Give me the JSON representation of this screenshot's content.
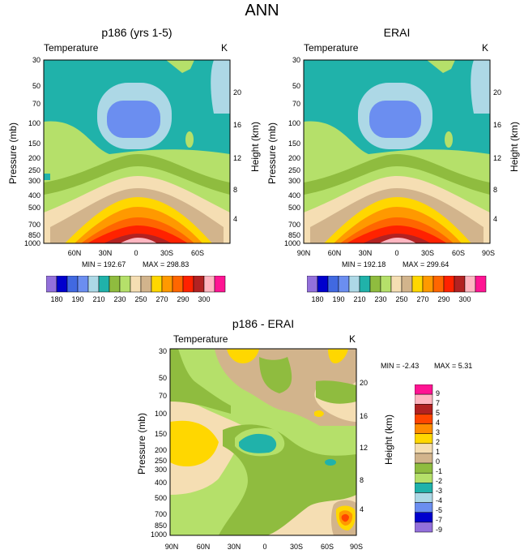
{
  "figure": {
    "title": "ANN",
    "variable_label": "Temperature",
    "units": "K",
    "ylabel_left": "Pressure (mb)",
    "ylabel_right": "Height (km)"
  },
  "panels": {
    "model": {
      "title": "p186 (yrs 1-5)",
      "min_label": "MIN = 192.67",
      "max_label": "MAX = 298.83"
    },
    "obs": {
      "title": "ERAI",
      "min_label": "MIN = 192.18",
      "max_label": "MAX = 299.64"
    },
    "diff": {
      "title": "p186 - ERAI",
      "min_label": "MIN =  -2.43",
      "max_label": "MAX =   5.31"
    }
  },
  "chart_data": [
    {
      "type": "contour",
      "name": "p186 (yrs 1-5)",
      "x_ticks": [
        "60N",
        "30N",
        "0",
        "30S",
        "60S"
      ],
      "pressure_levels": [
        "30",
        "50",
        "70",
        "100",
        "150",
        "200",
        "250",
        "300",
        "400",
        "500",
        "700",
        "850",
        "1000"
      ],
      "height_km_ticks": [
        "20",
        "16",
        "12",
        "8",
        "4"
      ],
      "min": 192.67,
      "max": 298.83
    },
    {
      "type": "contour",
      "name": "ERAI",
      "x_ticks": [
        "90N",
        "60N",
        "30N",
        "0",
        "30S",
        "60S",
        "90S"
      ],
      "pressure_levels": [
        "30",
        "50",
        "70",
        "100",
        "150",
        "200",
        "250",
        "300",
        "400",
        "500",
        "700",
        "850",
        "1000"
      ],
      "height_km_ticks": [
        "20",
        "16",
        "12",
        "8",
        "4"
      ],
      "min": 192.18,
      "max": 299.64
    },
    {
      "type": "contour",
      "name": "p186 - ERAI",
      "x_ticks": [
        "90N",
        "60N",
        "30N",
        "0",
        "30S",
        "60S",
        "90S"
      ],
      "pressure_levels": [
        "30",
        "50",
        "70",
        "100",
        "150",
        "200",
        "250",
        "300",
        "400",
        "500",
        "700",
        "850",
        "1000"
      ],
      "height_km_ticks": [
        "20",
        "16",
        "12",
        "8",
        "4"
      ],
      "min": -2.43,
      "max": 5.31
    }
  ],
  "colorbars": {
    "absolute": {
      "colors": [
        "#9370db",
        "#0000cd",
        "#4169e1",
        "#6b8ef0",
        "#add8e6",
        "#20b2aa",
        "#8fbc3f",
        "#b5e06a",
        "#f5deb3",
        "#d2b48c",
        "#ffd700",
        "#ff9900",
        "#ff6600",
        "#ff2200",
        "#b22222",
        "#ffb6c1",
        "#ff1493"
      ],
      "labels": [
        "180",
        "190",
        "210",
        "230",
        "250",
        "270",
        "290",
        "300"
      ]
    },
    "difference": {
      "colors": [
        "#ff1493",
        "#ffb6c1",
        "#b22222",
        "#ff4500",
        "#ff8c00",
        "#ffd700",
        "#f5deb3",
        "#d2b48c",
        "#8fbc3f",
        "#b5e06a",
        "#20b2aa",
        "#add8e6",
        "#6b8ef0",
        "#0000cd",
        "#9370db"
      ],
      "labels": [
        "9",
        "7",
        "5",
        "4",
        "3",
        "2",
        "1",
        "0",
        "-1",
        "-2",
        "-3",
        "-4",
        "-5",
        "-7",
        "-9"
      ]
    }
  }
}
